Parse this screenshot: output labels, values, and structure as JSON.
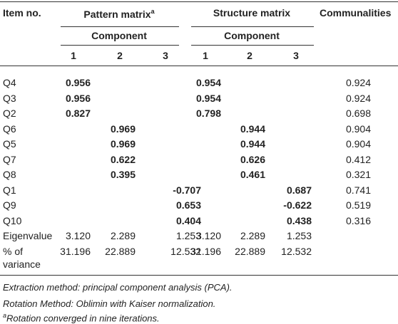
{
  "table": {
    "headers": {
      "item": "Item no.",
      "pattern": {
        "title": "Pattern matrix",
        "mark": "a"
      },
      "structure": "Structure matrix",
      "communalities": "Communalities",
      "component": [
        "Component",
        "Component"
      ],
      "pattern_columns": [
        "1",
        "2",
        "3"
      ],
      "structure_columns": [
        "1",
        "2",
        "3"
      ]
    },
    "rows": [
      {
        "item": "Q4",
        "pattern": [
          "0.956",
          null,
          null
        ],
        "structure": [
          "0.954",
          null,
          null
        ],
        "communality": "0.924"
      },
      {
        "item": "Q3",
        "pattern": [
          "0.956",
          null,
          null
        ],
        "structure": [
          "0.954",
          null,
          null
        ],
        "communality": "0.924"
      },
      {
        "item": "Q2",
        "pattern": [
          "0.827",
          null,
          null
        ],
        "structure": [
          "0.798",
          null,
          null
        ],
        "communality": "0.698"
      },
      {
        "item": "Q6",
        "pattern": [
          null,
          "0.969",
          null
        ],
        "structure": [
          null,
          "0.944",
          null
        ],
        "communality": "0.904"
      },
      {
        "item": "Q5",
        "pattern": [
          null,
          "0.969",
          null
        ],
        "structure": [
          null,
          "0.944",
          null
        ],
        "communality": "0.904"
      },
      {
        "item": "Q7",
        "pattern": [
          null,
          "0.622",
          null
        ],
        "structure": [
          null,
          "0.626",
          null
        ],
        "communality": "0.412"
      },
      {
        "item": "Q8",
        "pattern": [
          null,
          "0.395",
          null
        ],
        "structure": [
          null,
          "0.461",
          null
        ],
        "communality": "0.321"
      },
      {
        "item": "Q1",
        "pattern": [
          null,
          null,
          "-0.707"
        ],
        "structure": [
          null,
          null,
          "0.687"
        ],
        "communality": "0.741"
      },
      {
        "item": "Q9",
        "pattern": [
          null,
          null,
          "0.653"
        ],
        "structure": [
          null,
          null,
          "-0.622"
        ],
        "communality": "0.519"
      },
      {
        "item": "Q10",
        "pattern": [
          null,
          null,
          "0.404"
        ],
        "structure": [
          null,
          null,
          "0.438"
        ],
        "communality": "0.316"
      }
    ],
    "summary": [
      {
        "label": "Eigenvalue",
        "pattern": [
          "3.120",
          "2.289",
          "1.253"
        ],
        "structure": [
          "3.120",
          "2.289",
          "1.253"
        ]
      },
      {
        "label": "% of variance",
        "pattern": [
          "31.196",
          "22.889",
          "12.532"
        ],
        "structure": [
          "31.196",
          "22.889",
          "12.532"
        ]
      }
    ],
    "loadings_bold": true,
    "notes": [
      {
        "text": "Extraction method: principal component analysis (PCA)."
      },
      {
        "text": "Rotation Method: Oblimin with Kaiser normalization."
      },
      {
        "mark": "a",
        "text": "Rotation converged in nine iterations."
      }
    ]
  }
}
